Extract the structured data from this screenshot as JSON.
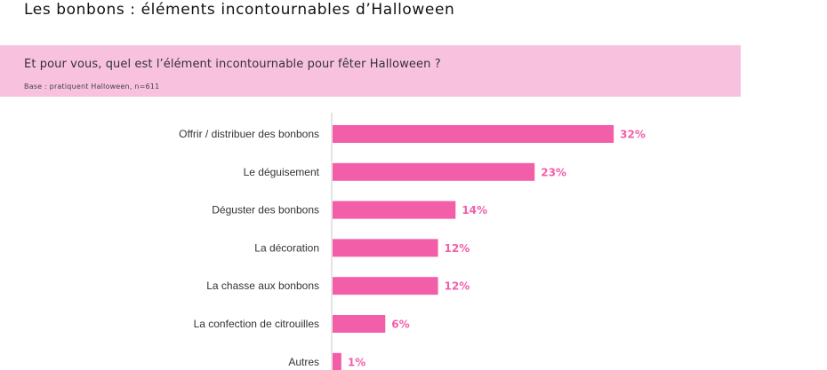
{
  "header": {
    "title": "Les bonbons : éléments incontournables d’Halloween"
  },
  "question": {
    "text": "Et pour vous, quel est l’élément incontournable pour fêter Halloween ?",
    "base": "Base : pratiquent Halloween, n=611"
  },
  "colors": {
    "bar": "#f25fa8",
    "band": "#f8c2df",
    "value_text": "#f25fa8",
    "axis": "#c8c8c8"
  },
  "chart_data": {
    "type": "bar",
    "orientation": "horizontal",
    "categories": [
      "Offrir / distribuer des bonbons",
      "Le déguisement",
      "Déguster des bonbons",
      "La décoration",
      "La chasse aux bonbons",
      "La confection de citrouilles",
      "Autres"
    ],
    "values": [
      32,
      23,
      14,
      12,
      12,
      6,
      1
    ],
    "value_labels": [
      "32%",
      "23%",
      "14%",
      "12%",
      "12%",
      "6%",
      "1%"
    ],
    "unit": "%",
    "title": "",
    "xlabel": "",
    "ylabel": "",
    "grid": false
  }
}
